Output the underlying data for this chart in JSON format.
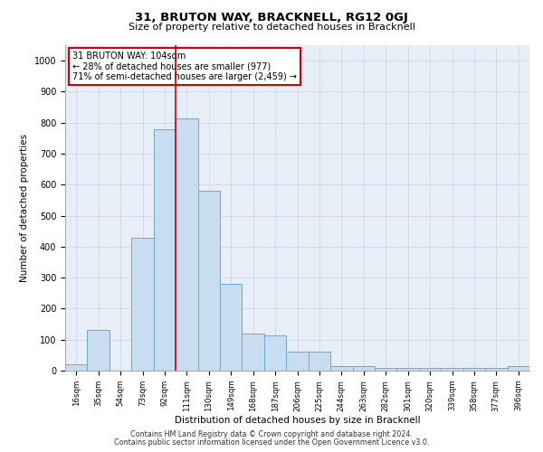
{
  "title1": "31, BRUTON WAY, BRACKNELL, RG12 0GJ",
  "title2": "Size of property relative to detached houses in Bracknell",
  "xlabel": "Distribution of detached houses by size in Bracknell",
  "ylabel": "Number of detached properties",
  "categories": [
    "16sqm",
    "35sqm",
    "54sqm",
    "73sqm",
    "92sqm",
    "111sqm",
    "130sqm",
    "149sqm",
    "168sqm",
    "187sqm",
    "206sqm",
    "225sqm",
    "244sqm",
    "263sqm",
    "282sqm",
    "301sqm",
    "320sqm",
    "339sqm",
    "358sqm",
    "377sqm",
    "396sqm"
  ],
  "values": [
    20,
    130,
    0,
    430,
    780,
    815,
    580,
    280,
    120,
    115,
    60,
    60,
    15,
    15,
    10,
    10,
    10,
    10,
    10,
    10,
    15
  ],
  "bar_color": "#c9ddf0",
  "bar_edge_color": "#6aaad4",
  "grid_color": "#cdd8e8",
  "bg_color": "#e8eef8",
  "annotation_text": "31 BRUTON WAY: 104sqm\n← 28% of detached houses are smaller (977)\n71% of semi-detached houses are larger (2,459) →",
  "annotation_box_color": "#ffffff",
  "annotation_box_edge": "#cc0000",
  "vline_x_index": 4.5,
  "vline_color": "#cc0000",
  "ylim": [
    0,
    1050
  ],
  "yticks": [
    0,
    100,
    200,
    300,
    400,
    500,
    600,
    700,
    800,
    900,
    1000
  ],
  "footer_line1": "Contains HM Land Registry data © Crown copyright and database right 2024.",
  "footer_line2": "Contains public sector information licensed under the Open Government Licence v3.0."
}
